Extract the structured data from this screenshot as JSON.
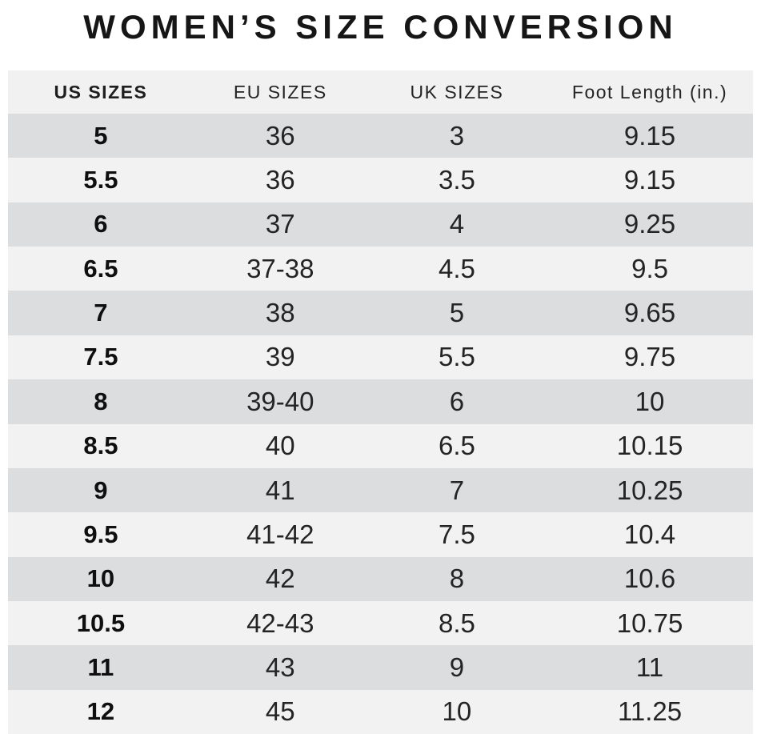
{
  "title": "WOMEN’S SIZE CONVERSION",
  "table": {
    "columns": [
      "US SIZES",
      "EU SIZES",
      "UK SIZES",
      "Foot Length (in.)"
    ],
    "rows": [
      [
        "5",
        "36",
        "3",
        "9.15"
      ],
      [
        "5.5",
        "36",
        "3.5",
        "9.15"
      ],
      [
        "6",
        "37",
        "4",
        "9.25"
      ],
      [
        "6.5",
        "37-38",
        "4.5",
        "9.5"
      ],
      [
        "7",
        "38",
        "5",
        "9.65"
      ],
      [
        "7.5",
        "39",
        "5.5",
        "9.75"
      ],
      [
        "8",
        "39-40",
        "6",
        "10"
      ],
      [
        "8.5",
        "40",
        "6.5",
        "10.15"
      ],
      [
        "9",
        "41",
        "7",
        "10.25"
      ],
      [
        "9.5",
        "41-42",
        "7.5",
        "10.4"
      ],
      [
        "10",
        "42",
        "8",
        "10.6"
      ],
      [
        "10.5",
        "42-43",
        "8.5",
        "10.75"
      ],
      [
        "11",
        "43",
        "9",
        "11"
      ],
      [
        "12",
        "45",
        "10",
        "11.25"
      ]
    ]
  },
  "colors": {
    "page_bg": "#ffffff",
    "header_bg": "#f1f1f1",
    "row_dark": "#dcddde",
    "row_light": "#f2f2f2",
    "text": "#1d1d1f"
  }
}
